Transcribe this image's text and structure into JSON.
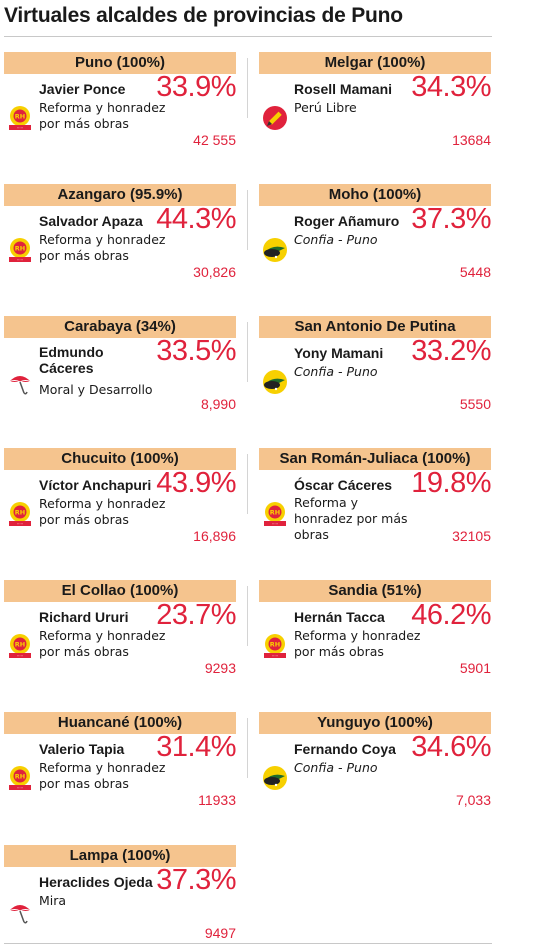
{
  "title": "Virtuales alcaldes de provincias de Puno",
  "colors": {
    "header_band": "#f5c48e",
    "percent_red": "#e0223c"
  },
  "provinces": [
    {
      "province": "Puno (100%)",
      "candidate": "Javier Ponce",
      "party": "Reforma y honradez por más obras",
      "percent": "33.9%",
      "votes": "42 555",
      "logo_icon": "rh-party-logo-icon"
    },
    {
      "province": "Melgar (100%)",
      "candidate": "Rosell Mamani",
      "party": "Perú Libre",
      "percent": "34.3%",
      "votes": "13684",
      "logo_icon": "pencil-logo-icon"
    },
    {
      "province": "Azangaro (95.9%)",
      "candidate": "Salvador Apaza",
      "party": "Reforma y honradez por más obras",
      "percent": "44.3%",
      "votes": "30,826",
      "logo_icon": "rh-party-logo-icon"
    },
    {
      "province": "Moho (100%)",
      "candidate": "Roger Añamuro",
      "party": "Confia - Puno",
      "percent": "37.3%",
      "votes": "5448",
      "logo_icon": "confia-logo-icon"
    },
    {
      "province": "Carabaya (34%)",
      "candidate": "Edmundo Cáceres",
      "party": "Moral y Desarrollo",
      "percent": "33.5%",
      "votes": "8,990",
      "logo_icon": "umbrella-logo-icon"
    },
    {
      "province": "San Antonio De Putina",
      "candidate": "Yony Mamani",
      "party": "Confia - Puno",
      "percent": "33.2%",
      "votes": "5550",
      "logo_icon": "confia-logo-icon"
    },
    {
      "province": "Chucuito (100%)",
      "candidate": "Víctor Anchapuri",
      "party": "Reforma y honradez por más obras",
      "percent": "43.9%",
      "votes": "16,896",
      "logo_icon": "rh-party-logo-icon"
    },
    {
      "province": "San Román-Juliaca (100%)",
      "candidate": "Óscar Cáceres",
      "party": "Reforma y honradez por más obras",
      "percent": "19.8%",
      "votes": "32105",
      "logo_icon": "rh-party-logo-icon"
    },
    {
      "province": "El Collao (100%)",
      "candidate": "Richard Ururi",
      "party": "Reforma y honradez por más obras",
      "percent": "23.7%",
      "votes": "9293",
      "logo_icon": "rh-party-logo-icon"
    },
    {
      "province": "Sandia (51%)",
      "candidate": "Hernán Tacca",
      "party": "Reforma y honradez por más obras",
      "percent": "46.2%",
      "votes": "5901",
      "logo_icon": "rh-party-logo-icon"
    },
    {
      "province": "Huancané (100%)",
      "candidate": "Valerio Tapia",
      "party": "Reforma y honradez por mas obras",
      "percent": "31.4%",
      "votes": "11933",
      "logo_icon": "rh-party-logo-icon"
    },
    {
      "province": "Yunguyo (100%)",
      "candidate": "Fernando Coya",
      "party": "Confia - Puno",
      "percent": "34.6%",
      "votes": "7,033",
      "logo_icon": "confia-logo-icon"
    },
    {
      "province": "Lampa (100%)",
      "candidate": "Heraclides Ojeda",
      "party": "Mira",
      "percent": "37.3%",
      "votes": "9497",
      "logo_icon": "umbrella-logo-icon"
    }
  ]
}
